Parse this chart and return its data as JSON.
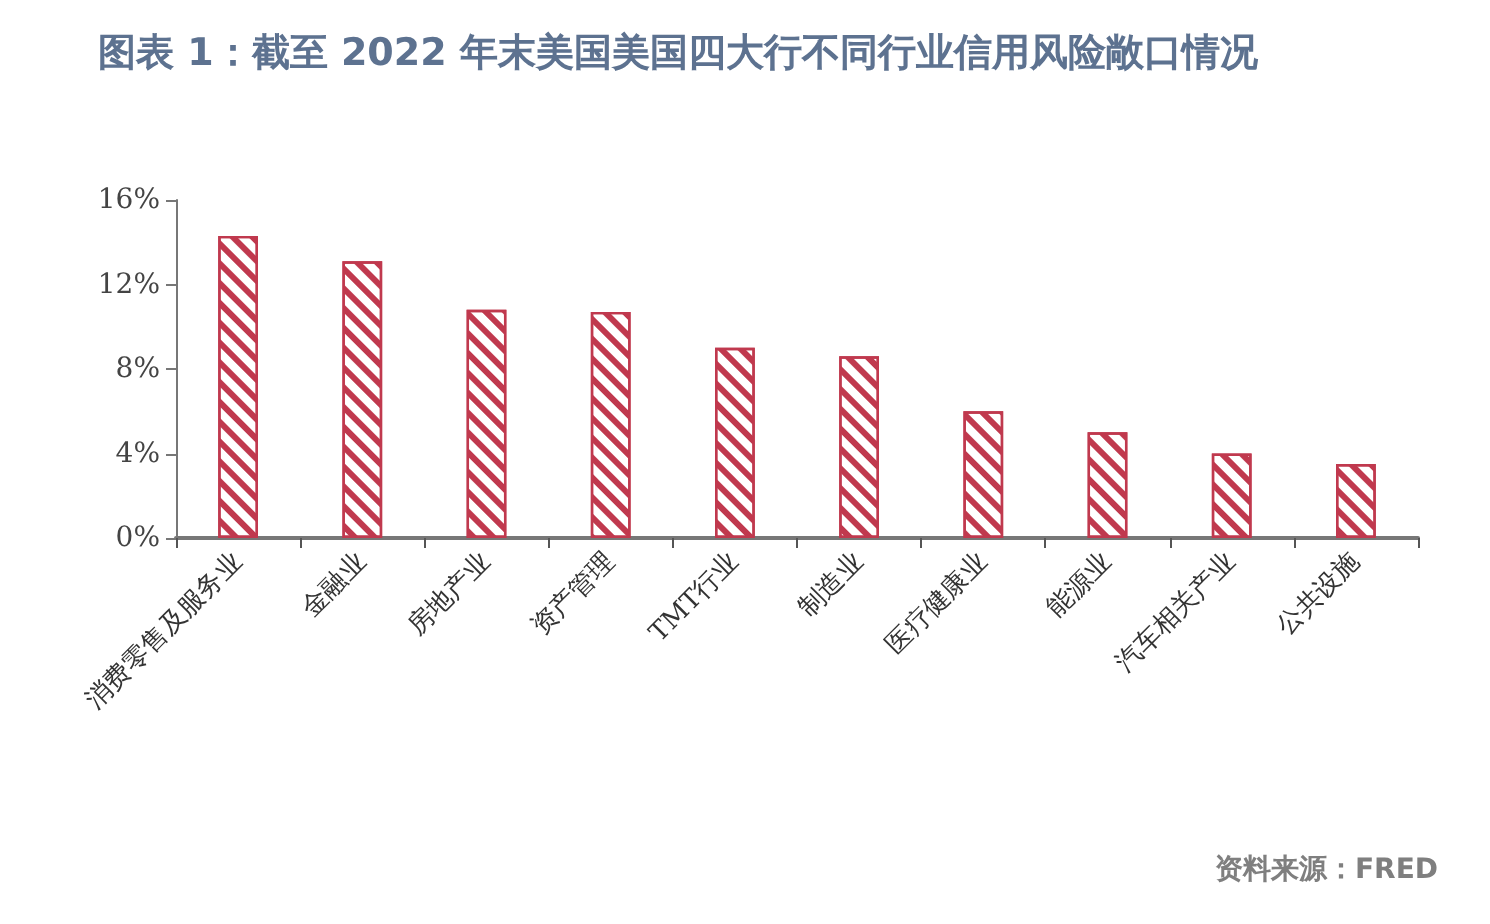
{
  "chart_data": {
    "type": "bar",
    "title": "图表 1：截至 2022 年末美国美国四大行不同行业信用风险敞口情况",
    "categories": [
      "消费零售及服务业",
      "金融业",
      "房地产业",
      "资产管理",
      "TMT行业",
      "制造业",
      "医疗健康业",
      "能源业",
      "汽车相关产业",
      "公共设施"
    ],
    "values": [
      14.3,
      13.1,
      10.8,
      10.7,
      9.0,
      8.6,
      6.0,
      5.0,
      4.0,
      3.5
    ],
    "color": "#c0394e",
    "ylim": [
      0,
      16
    ],
    "yticks": [
      {
        "value": 0,
        "label": "0%"
      },
      {
        "value": 4,
        "label": "4%"
      },
      {
        "value": 8,
        "label": "8%"
      },
      {
        "value": 12,
        "label": "12%"
      },
      {
        "value": 16,
        "label": "16%"
      }
    ],
    "grid": false,
    "annotations": [
      "资料来源：FRED"
    ]
  }
}
